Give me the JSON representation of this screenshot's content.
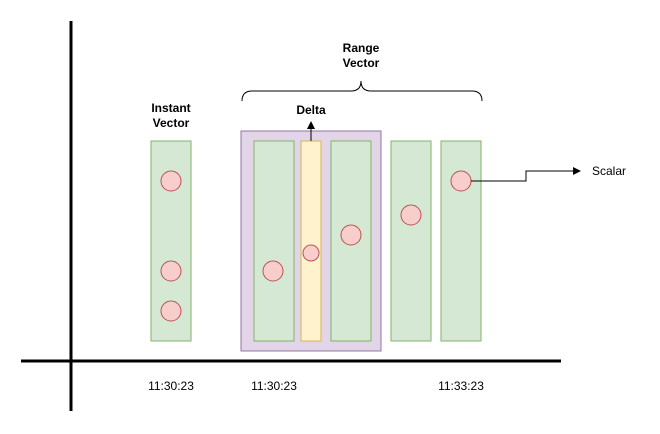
{
  "labels": {
    "instant_line1": "Instant",
    "instant_line2": "Vector",
    "range_line1": "Range",
    "range_line2": "Vector",
    "delta": "Delta",
    "scalar": "Scalar"
  },
  "time_labels": [
    "11:30:23",
    "11:30:23",
    "11:33:23"
  ],
  "colors": {
    "sample_fill": "#d5e8d4",
    "sample_stroke": "#82b366",
    "range_fill": "#e1d5e7",
    "range_stroke": "#9673a6",
    "delta_fill": "#fff2cc",
    "delta_stroke": "#d6b656",
    "point_fill": "#f8cecc",
    "point_stroke": "#b85450"
  }
}
